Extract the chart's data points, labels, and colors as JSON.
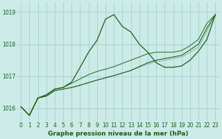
{
  "title": "Graphe pression niveau de la mer (hPa)",
  "background_color": "#cceae7",
  "grid_color": "#aad4d0",
  "line_color_dark": "#1a5c1a",
  "line_color_mid": "#2a7a2a",
  "xlim": [
    -0.5,
    23.5
  ],
  "ylim": [
    1015.6,
    1019.3
  ],
  "yticks": [
    1016,
    1017,
    1018,
    1019
  ],
  "xticks": [
    0,
    1,
    2,
    3,
    4,
    5,
    6,
    7,
    8,
    9,
    10,
    11,
    12,
    13,
    14,
    15,
    16,
    17,
    18,
    19,
    20,
    21,
    22,
    23
  ],
  "series_dotted_x": [
    0,
    1,
    2,
    3,
    4,
    5,
    6,
    7,
    8,
    9,
    10,
    11,
    12,
    13,
    14,
    15,
    16,
    17,
    18,
    19,
    20,
    21,
    22,
    23
  ],
  "series_dotted_y": [
    1016.05,
    1015.78,
    1016.32,
    1016.38,
    1016.55,
    1016.6,
    1016.65,
    1016.72,
    1016.8,
    1016.88,
    1016.95,
    1017.02,
    1017.1,
    1017.18,
    1017.28,
    1017.38,
    1017.45,
    1017.5,
    1017.55,
    1017.6,
    1017.75,
    1017.9,
    1018.4,
    1018.92
  ],
  "series_low_x": [
    0,
    1,
    2,
    3,
    4,
    5,
    6,
    7,
    8,
    9,
    10,
    11,
    12,
    13,
    14,
    15,
    16,
    17,
    18,
    19,
    20,
    21,
    22,
    23
  ],
  "series_low_y": [
    1016.05,
    1015.78,
    1016.32,
    1016.38,
    1016.55,
    1016.6,
    1016.65,
    1016.72,
    1016.8,
    1016.88,
    1016.95,
    1017.02,
    1017.1,
    1017.18,
    1017.3,
    1017.42,
    1017.5,
    1017.55,
    1017.6,
    1017.65,
    1017.82,
    1018.0,
    1018.5,
    1018.92
  ],
  "series_mid_x": [
    0,
    1,
    2,
    3,
    4,
    5,
    6,
    7,
    8,
    9,
    10,
    11,
    12,
    13,
    14,
    15,
    16,
    17,
    18,
    19,
    20,
    21,
    22,
    23
  ],
  "series_mid_y": [
    1016.05,
    1015.78,
    1016.32,
    1016.42,
    1016.6,
    1016.65,
    1016.78,
    1016.92,
    1017.05,
    1017.15,
    1017.22,
    1017.3,
    1017.4,
    1017.5,
    1017.6,
    1017.7,
    1017.75,
    1017.75,
    1017.75,
    1017.8,
    1017.95,
    1018.15,
    1018.65,
    1018.92
  ],
  "series_peak_x": [
    0,
    1,
    2,
    3,
    4,
    5,
    6,
    7,
    8,
    9,
    10,
    11,
    12,
    13,
    14,
    15,
    16,
    17,
    18,
    19,
    20,
    21,
    22,
    23
  ],
  "series_peak_y": [
    1016.05,
    1015.78,
    1016.32,
    1016.42,
    1016.6,
    1016.65,
    1016.82,
    1017.28,
    1017.75,
    1018.12,
    1018.78,
    1018.92,
    1018.55,
    1018.38,
    1018.0,
    1017.75,
    1017.42,
    1017.28,
    1017.28,
    1017.32,
    1017.5,
    1017.78,
    1018.15,
    1018.92
  ]
}
